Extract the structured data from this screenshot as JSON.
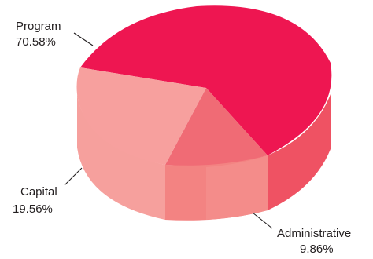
{
  "chart_data": {
    "type": "pie",
    "style": "3d",
    "title": "",
    "slices": [
      {
        "label": "Program",
        "value": 70.58,
        "value_label": "70.58%",
        "color": "#ee1651"
      },
      {
        "label": "Administrative",
        "value": 9.86,
        "value_label": "9.86%",
        "color": "#f06b75"
      },
      {
        "label": "Capital",
        "value": 19.56,
        "value_label": "19.56%",
        "color": "#f7a09e"
      }
    ],
    "legend": "none"
  }
}
